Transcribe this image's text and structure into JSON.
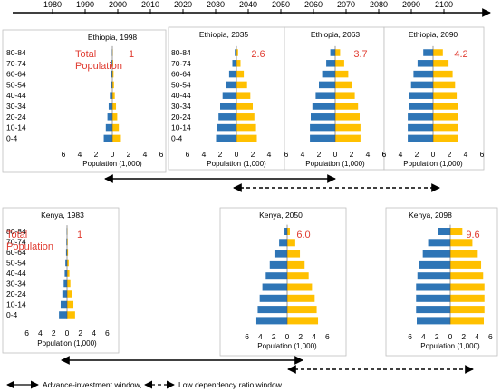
{
  "timeline": {
    "years": [
      "1980",
      "1990",
      "2000",
      "2010",
      "2020",
      "2030",
      "2040",
      "2050",
      "2060",
      "2070",
      "2080",
      "2090",
      "2100"
    ]
  },
  "age_groups": [
    "80-84",
    "70-74",
    "60-64",
    "50-54",
    "40-44",
    "30-34",
    "20-24",
    "10-14",
    "0-4"
  ],
  "x_axis": {
    "ticks": [
      "6",
      "4",
      "2",
      "0",
      "2",
      "4",
      "6"
    ],
    "label": "Population (1,000)"
  },
  "total_population_label": [
    "Total",
    "Population"
  ],
  "colors": {
    "male": "#2e75b6",
    "female": "#ffc000",
    "annotation": "#e03c31",
    "axis": "#000000"
  },
  "chart_data": [
    {
      "type": "bar",
      "title": "Ethiopia, 1998",
      "total_population": "1",
      "male": [
        0.05,
        0.1,
        0.15,
        0.2,
        0.3,
        0.45,
        0.6,
        0.8,
        1.05
      ],
      "female": [
        0.05,
        0.1,
        0.15,
        0.2,
        0.3,
        0.45,
        0.6,
        0.8,
        1.05
      ]
    },
    {
      "type": "bar",
      "title": "Ethiopia, 2035",
      "total_population": "2.6",
      "male": [
        0.2,
        0.5,
        0.9,
        1.3,
        1.7,
        2.0,
        2.2,
        2.4,
        2.5
      ],
      "female": [
        0.2,
        0.5,
        0.9,
        1.3,
        1.7,
        2.0,
        2.2,
        2.4,
        2.5
      ]
    },
    {
      "type": "bar",
      "title": "Ethiopia, 2063",
      "total_population": "3.7",
      "male": [
        0.6,
        1.1,
        1.6,
        2.0,
        2.4,
        2.8,
        3.0,
        3.1,
        3.1
      ],
      "female": [
        0.6,
        1.1,
        1.6,
        2.0,
        2.4,
        2.8,
        3.0,
        3.1,
        3.1
      ]
    },
    {
      "type": "bar",
      "title": "Ethiopia, 2090",
      "total_population": "4.2",
      "male": [
        1.2,
        1.9,
        2.4,
        2.7,
        2.9,
        3.0,
        3.1,
        3.1,
        3.1
      ],
      "female": [
        1.2,
        1.9,
        2.4,
        2.7,
        2.9,
        3.0,
        3.1,
        3.1,
        3.1
      ]
    },
    {
      "type": "bar",
      "title": "Kenya, 1983",
      "total_population": "1",
      "male": [
        0.05,
        0.1,
        0.15,
        0.25,
        0.35,
        0.5,
        0.7,
        0.95,
        1.2
      ],
      "female": [
        0.05,
        0.1,
        0.15,
        0.25,
        0.35,
        0.5,
        0.7,
        0.95,
        1.2
      ]
    },
    {
      "type": "bar",
      "title": "Kenya, 2050",
      "total_population": "6.0",
      "male": [
        0.4,
        1.2,
        1.9,
        2.6,
        3.2,
        3.7,
        4.1,
        4.4,
        4.6
      ],
      "female": [
        0.4,
        1.2,
        1.9,
        2.6,
        3.2,
        3.7,
        4.1,
        4.4,
        4.6
      ]
    },
    {
      "type": "bar",
      "title": "Kenya, 2098",
      "total_population": "9.6",
      "male": [
        1.8,
        3.3,
        4.1,
        4.6,
        4.9,
        5.1,
        5.1,
        5.1,
        5.0
      ],
      "female": [
        1.8,
        3.3,
        4.1,
        4.6,
        4.9,
        5.1,
        5.1,
        5.1,
        5.0
      ]
    }
  ],
  "legend": {
    "advance_label": "Advance-investment window,",
    "low_dep_label": "Low dependency ratio window"
  }
}
